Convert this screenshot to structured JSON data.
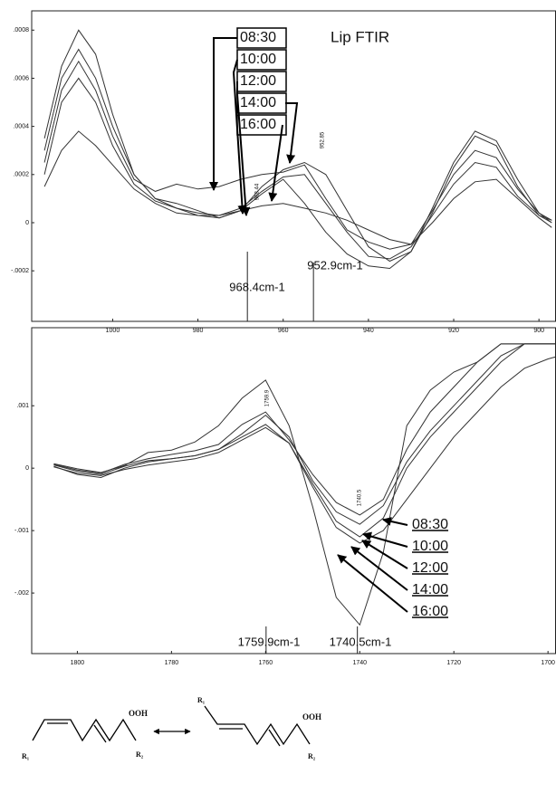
{
  "chart_data": [
    {
      "type": "line",
      "title": "Lip FTIR",
      "x": [
        1016,
        1012,
        1008,
        1004,
        1000,
        995,
        990,
        985,
        980,
        975,
        970,
        965,
        960,
        955,
        950,
        945,
        940,
        935,
        930,
        925,
        920,
        915,
        910,
        905,
        900,
        897
      ],
      "xlim": [
        1019,
        896
      ],
      "xticks": [
        1000,
        980,
        960,
        940,
        920,
        900
      ],
      "ylim": [
        -0.00041,
        0.00088
      ],
      "yticks": [
        {
          "value": 0.0008,
          "label": ".0008"
        },
        {
          "value": 0.0006,
          "label": ".0006"
        },
        {
          "value": 0.0004,
          "label": ".0004"
        },
        {
          "value": 0.0002,
          "label": ".0002"
        },
        0,
        {
          "value": -0.0002,
          "label": "-.0002"
        }
      ],
      "series": [
        {
          "name": "08:30",
          "color": "#333333",
          "values": [
            0.00035,
            0.00065,
            0.0008,
            0.0007,
            0.00045,
            0.0002,
            0.0001,
            6e-05,
            3e-05,
            2e-05,
            5e-05,
            0.00012,
            0.00018,
            8e-05,
            -4e-05,
            -0.00013,
            -0.00018,
            -0.00019,
            -0.00012,
            6e-05,
            0.00025,
            0.00038,
            0.00034,
            0.00018,
            4e-05,
            0
          ]
        },
        {
          "name": "10:00",
          "color": "#333333",
          "values": [
            0.0003,
            0.0006,
            0.00072,
            0.0006,
            0.0004,
            0.0002,
            0.0001,
            8e-05,
            5e-05,
            2e-05,
            5e-05,
            0.00015,
            0.00022,
            0.00025,
            0.0002,
            5e-05,
            -0.0001,
            -0.00016,
            -0.00012,
            4e-05,
            0.00023,
            0.00036,
            0.00032,
            0.00015,
            3e-05,
            1e-05
          ]
        },
        {
          "name": "12:00",
          "color": "#333333",
          "values": [
            0.00025,
            0.00055,
            0.00067,
            0.00055,
            0.00036,
            0.00018,
            0.00013,
            0.00016,
            0.00014,
            0.00015,
            0.00018,
            0.0002,
            0.00021,
            0.00024,
            0.0001,
            -3e-05,
            -8e-05,
            -0.00011,
            -9e-05,
            5e-05,
            0.0002,
            0.0003,
            0.00027,
            0.00014,
            4e-05,
            1e-05
          ]
        },
        {
          "name": "14:00",
          "color": "#333333",
          "values": [
            0.0002,
            0.0005,
            0.0006,
            0.0005,
            0.00032,
            0.00016,
            9e-05,
            6e-05,
            4e-05,
            3e-05,
            6e-05,
            0.00013,
            0.00019,
            0.0002,
            8e-05,
            -4e-05,
            -0.00014,
            -0.00015,
            -0.0001,
            3e-05,
            0.00016,
            0.00025,
            0.00023,
            0.00011,
            3e-05,
            0
          ]
        },
        {
          "name": "16:00",
          "color": "#333333",
          "values": [
            0.00015,
            0.0003,
            0.00038,
            0.00032,
            0.00024,
            0.00014,
            8e-05,
            4e-05,
            3e-05,
            3e-05,
            5e-05,
            7e-05,
            8e-05,
            6e-05,
            4e-05,
            1e-05,
            -3e-05,
            -7e-05,
            -9e-05,
            0,
            0.0001,
            0.00017,
            0.00018,
            0.0001,
            2e-05,
            -2e-05
          ]
        }
      ],
      "markers": [
        {
          "x": 968.4,
          "label": "968.4cm-1",
          "peak_label": "968.44"
        },
        {
          "x": 952.9,
          "label": "952.9cm-1",
          "peak_label": "952.85"
        }
      ]
    },
    {
      "type": "line",
      "x": [
        1805,
        1800,
        1795,
        1790,
        1785,
        1780,
        1775,
        1770,
        1765,
        1760,
        1755,
        1750,
        1745,
        1740,
        1735,
        1730,
        1725,
        1720,
        1715,
        1710,
        1705,
        1700,
        1698.5
      ],
      "xlim": [
        1809.7,
        1698.3
      ],
      "xticks": [
        1800,
        1780,
        1760,
        1740,
        1720,
        1700
      ],
      "ylim": [
        -0.00297,
        0.00225
      ],
      "yticks": [
        {
          "value": 0.001,
          "label": ".001"
        },
        0,
        {
          "value": -0.001,
          "label": "-.001"
        },
        {
          "value": -0.002,
          "label": "-.002"
        }
      ],
      "series": [
        {
          "name": "08:30",
          "color": "#333333",
          "values": [
            7e-05,
            -1e-05,
            -7e-05,
            4e-05,
            0.00025,
            0.00029,
            0.00042,
            0.00068,
            0.00112,
            0.00141,
            0.00068,
            -0.00062,
            -0.00207,
            -0.00251,
            -0.00135,
            0.00068,
            0.00125,
            0.00154,
            0.0017,
            0.00199,
            0.00199,
            0.00199,
            0.00199
          ]
        },
        {
          "name": "10:00",
          "color": "#333333",
          "values": [
            5e-05,
            -5e-05,
            -0.0001,
            3e-05,
            0.00012,
            0.00015,
            0.0002,
            0.0003,
            0.00055,
            0.00085,
            0.0005,
            -0.0002,
            -0.0007,
            -0.0009,
            -0.0006,
            0.0001,
            0.0006,
            0.001,
            0.0014,
            0.0018,
            0.00199,
            0.00199,
            0.00199
          ]
        },
        {
          "name": "12:00",
          "color": "#333333",
          "values": [
            3e-05,
            -0.0001,
            -0.00015,
            0,
            0.0001,
            0.00015,
            0.0002,
            0.0003,
            0.0005,
            0.0007,
            0.0004,
            -0.00025,
            -0.00085,
            -0.0011,
            -0.0008,
            0,
            0.0005,
            0.0009,
            0.0013,
            0.0017,
            0.00199,
            0.00199,
            0.00199
          ]
        },
        {
          "name": "14:00",
          "color": "#333333",
          "values": [
            6e-05,
            -3e-05,
            -8e-05,
            6e-05,
            0.00015,
            0.00022,
            0.00028,
            0.00038,
            0.0007,
            0.0009,
            0.00045,
            -0.0001,
            -0.00055,
            -0.00075,
            -0.0005,
            0.0003,
            0.0009,
            0.0013,
            0.0017,
            0.00199,
            0.00199,
            0.00199,
            0.00199
          ]
        },
        {
          "name": "16:00",
          "color": "#333333",
          "values": [
            2e-05,
            -8e-05,
            -0.00012,
            -2e-05,
            5e-05,
            0.0001,
            0.00015,
            0.00025,
            0.00045,
            0.00065,
            0.0004,
            -0.0003,
            -0.00095,
            -0.0012,
            -0.001,
            -0.0005,
            0,
            0.0005,
            0.0009,
            0.0013,
            0.0016,
            0.00175,
            0.00178
          ]
        }
      ],
      "markers": [
        {
          "x": 1759.9,
          "label": "1759.9cm-1",
          "peak_label": "1759.9"
        },
        {
          "x": 1740.5,
          "label": "1740.5cm-1",
          "peak_label": "1740.5"
        }
      ]
    }
  ],
  "structures": {
    "left": {
      "oxy": "OOH",
      "r_start": "R₁",
      "r_end": "R₂"
    },
    "right": {
      "r_start": "R₁",
      "oxy": "OOH",
      "r_end": "R₂"
    }
  }
}
